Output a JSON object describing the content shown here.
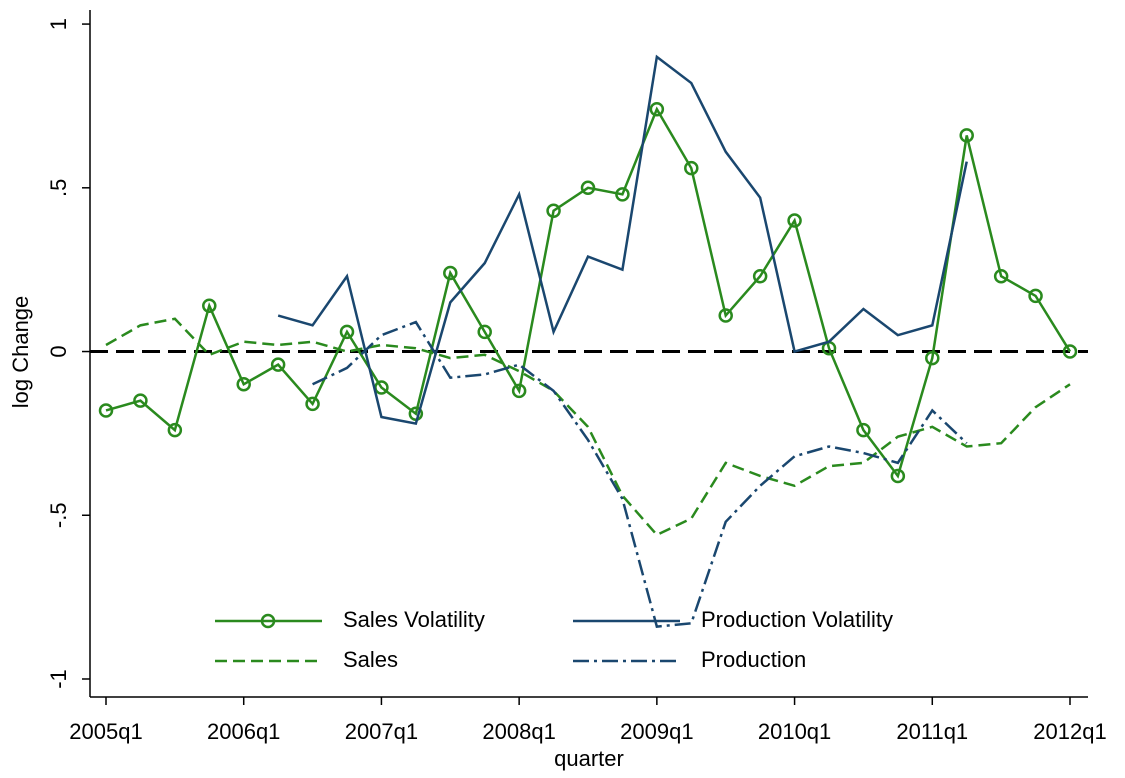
{
  "chart_data": {
    "type": "line",
    "x_label": "quarter",
    "y_label": "log Change",
    "categories": [
      "2005q1",
      null,
      null,
      null,
      "2006q1",
      null,
      null,
      null,
      "2007q1",
      null,
      null,
      null,
      "2008q1",
      null,
      null,
      null,
      "2009q1",
      null,
      null,
      null,
      "2010q1",
      null,
      null,
      null,
      "2011q1",
      null,
      null,
      null,
      "2012q1"
    ],
    "ylim": [
      -1.055,
      1.043
    ],
    "yticks": [
      {
        "value": 1,
        "label": "1"
      },
      {
        "value": 0.5,
        "label": ".5"
      },
      {
        "value": 0,
        "label": "0"
      },
      {
        "value": -0.5,
        "label": "-.5"
      },
      {
        "value": -1,
        "label": "-1"
      }
    ],
    "yline": 0,
    "series": [
      {
        "name": "Sales Volatility",
        "color": "#2a8a1e",
        "style": "solid",
        "marker": "circle",
        "values": [
          -0.18,
          -0.15,
          -0.24,
          0.14,
          -0.1,
          -0.04,
          -0.16,
          0.06,
          -0.11,
          -0.19,
          0.24,
          0.06,
          -0.12,
          0.43,
          0.5,
          0.48,
          0.74,
          0.56,
          0.11,
          0.23,
          0.4,
          0.01,
          -0.24,
          -0.38,
          -0.02,
          0.66,
          0.23,
          0.17,
          0.0
        ]
      },
      {
        "name": "Production Volatility",
        "color": "#1a476f",
        "style": "solid",
        "values": [
          null,
          null,
          null,
          null,
          null,
          0.11,
          0.08,
          0.23,
          -0.2,
          -0.22,
          0.15,
          0.27,
          0.48,
          0.06,
          0.29,
          0.25,
          0.9,
          0.82,
          0.61,
          0.47,
          0.0,
          0.03,
          0.13,
          0.05,
          0.08,
          0.58,
          null,
          null,
          null
        ]
      },
      {
        "name": "Sales",
        "color": "#2a8a1e",
        "style": "dash",
        "values": [
          0.02,
          0.08,
          0.1,
          -0.01,
          0.03,
          0.02,
          0.03,
          0.0,
          0.02,
          0.01,
          -0.02,
          -0.01,
          -0.06,
          -0.12,
          -0.23,
          -0.44,
          -0.56,
          -0.51,
          -0.34,
          -0.38,
          -0.41,
          -0.35,
          -0.34,
          -0.26,
          -0.23,
          -0.29,
          -0.28,
          -0.17,
          -0.1
        ]
      },
      {
        "name": "Production",
        "color": "#1a476f",
        "style": "dashdot",
        "values": [
          null,
          null,
          null,
          null,
          null,
          null,
          -0.1,
          -0.05,
          0.05,
          0.09,
          -0.08,
          -0.07,
          -0.04,
          -0.12,
          -0.27,
          -0.45,
          -0.84,
          -0.83,
          -0.52,
          -0.41,
          -0.32,
          -0.29,
          -0.31,
          -0.34,
          -0.18,
          -0.28,
          null,
          null,
          null
        ]
      }
    ]
  }
}
